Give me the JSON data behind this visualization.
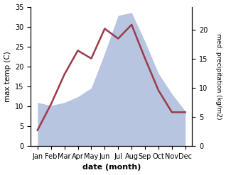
{
  "months": [
    "Jan",
    "Feb",
    "Mar",
    "Apr",
    "May",
    "Jun",
    "Jul",
    "Aug",
    "Sep",
    "Oct",
    "Nov",
    "Dec"
  ],
  "month_positions": [
    0,
    1,
    2,
    3,
    4,
    5,
    6,
    7,
    8,
    9,
    10,
    11
  ],
  "temp": [
    4.0,
    10.5,
    18.0,
    24.0,
    22.0,
    29.5,
    27.0,
    30.5,
    22.0,
    14.0,
    8.5,
    8.5
  ],
  "precip": [
    7.5,
    7.0,
    7.5,
    8.5,
    10.0,
    16.0,
    22.5,
    23.0,
    18.0,
    12.5,
    9.0,
    6.0
  ],
  "temp_color": "#9b3a4a",
  "precip_fill_color": "#b8c5e0",
  "temp_ylim": [
    0,
    35
  ],
  "precip_ylim": [
    0,
    24.0
  ],
  "temp_yticks": [
    0,
    5,
    10,
    15,
    20,
    25,
    30,
    35
  ],
  "precip_yticks": [
    0,
    5,
    10,
    15,
    20
  ],
  "xlabel": "date (month)",
  "ylabel_left": "max temp (C)",
  "ylabel_right": "med. precipitation (kg/m2)",
  "background_color": "#ffffff",
  "linewidth": 1.8,
  "figsize": [
    3.18,
    2.47
  ],
  "dpi": 100
}
